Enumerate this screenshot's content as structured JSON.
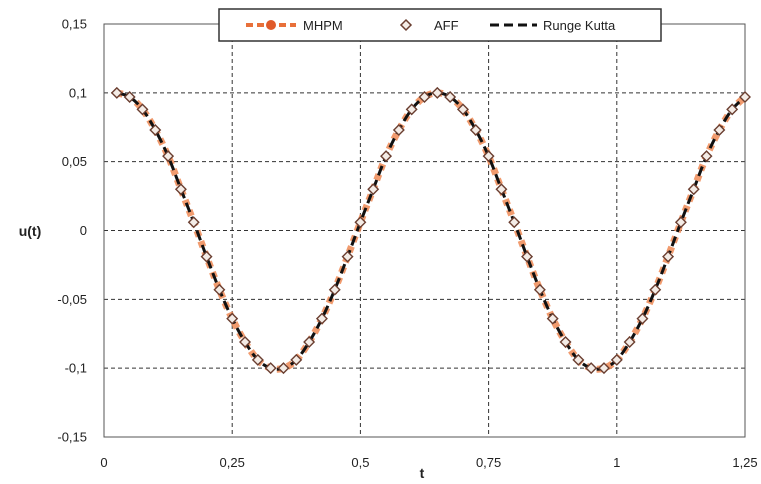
{
  "chart_data": {
    "type": "line",
    "xlabel": "t",
    "ylabel": "u(t)",
    "xlim": [
      0,
      1.25
    ],
    "ylim": [
      -0.15,
      0.15
    ],
    "x_ticks": [
      0,
      0.25,
      0.5,
      0.75,
      1,
      1.25
    ],
    "x_tick_labels": [
      "0",
      "0,25",
      "0,5",
      "0,75",
      "1",
      "1,25"
    ],
    "y_ticks": [
      -0.15,
      -0.1,
      -0.05,
      0,
      0.05,
      0.1,
      0.15
    ],
    "y_tick_labels": [
      "-0,15",
      "-0,1",
      "-0,05",
      "0",
      "0,05",
      "0,1",
      "0,15"
    ],
    "grid": true,
    "legend_position": "top",
    "series": [
      {
        "name": "MHPM",
        "style": "line-with-circle-markers",
        "color": "#e8703a"
      },
      {
        "name": "AFF",
        "style": "diamond-markers",
        "color": "#7a4a3a"
      },
      {
        "name": "Runge Kutta",
        "style": "dashed-line",
        "color": "#111111"
      }
    ],
    "x": [
      0.025,
      0.05,
      0.075,
      0.1,
      0.125,
      0.15,
      0.175,
      0.2,
      0.225,
      0.25,
      0.275,
      0.3,
      0.325,
      0.35,
      0.375,
      0.4,
      0.425,
      0.45,
      0.475,
      0.5,
      0.525,
      0.55,
      0.575,
      0.6,
      0.625,
      0.65,
      0.675,
      0.7,
      0.725,
      0.75,
      0.775,
      0.8,
      0.825,
      0.85,
      0.875,
      0.9,
      0.925,
      0.95,
      0.975,
      1.0,
      1.025,
      1.05,
      1.075,
      1.1,
      1.125,
      1.15,
      1.175,
      1.2,
      1.225,
      1.25
    ],
    "y": [
      0.1,
      0.097,
      0.088,
      0.073,
      0.054,
      0.03,
      0.006,
      -0.019,
      -0.043,
      -0.064,
      -0.081,
      -0.094,
      -0.1,
      -0.1,
      -0.094,
      -0.081,
      -0.064,
      -0.043,
      -0.019,
      0.006,
      0.03,
      0.054,
      0.073,
      0.088,
      0.097,
      0.1,
      0.097,
      0.088,
      0.073,
      0.054,
      0.03,
      0.006,
      -0.019,
      -0.043,
      -0.064,
      -0.081,
      -0.094,
      -0.1,
      -0.1,
      -0.094,
      -0.081,
      -0.064,
      -0.043,
      -0.019,
      0.006,
      0.03,
      0.054,
      0.073,
      0.088,
      0.097
    ]
  }
}
